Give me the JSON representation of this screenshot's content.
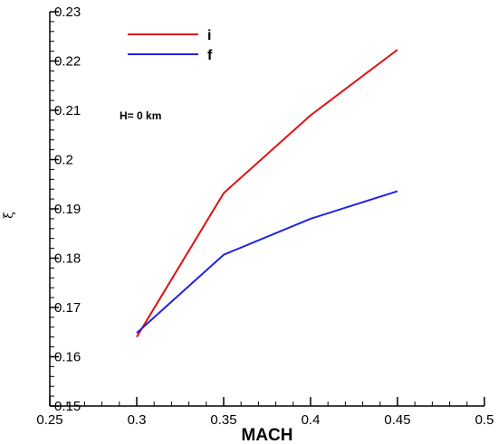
{
  "chart_data": {
    "type": "line",
    "title": "",
    "xlabel": "MACH",
    "ylabel": "ξ",
    "xlim": [
      0.25,
      0.5
    ],
    "ylim": [
      0.15,
      0.23
    ],
    "x_ticks": [
      "0.25",
      "0.3",
      "0.35",
      "0.4",
      "0.45",
      "0.5"
    ],
    "y_ticks": [
      "0.15",
      "0.16",
      "0.17",
      "0.18",
      "0.19",
      "0.2",
      "0.21",
      "0.22",
      "0.23"
    ],
    "x_minor_step": 0.01,
    "y_minor_step": 0.002,
    "grid": false,
    "legend_position": "top-left",
    "annotation": "H= 0 km",
    "x": [
      0.3,
      0.35,
      0.4,
      0.45
    ],
    "series": [
      {
        "name": "i",
        "color": "#e01010",
        "values": [
          0.164,
          0.1932,
          0.209,
          0.2223
        ]
      },
      {
        "name": "f",
        "color": "#2222e0",
        "values": [
          0.1648,
          0.1807,
          0.188,
          0.1936
        ]
      }
    ]
  }
}
